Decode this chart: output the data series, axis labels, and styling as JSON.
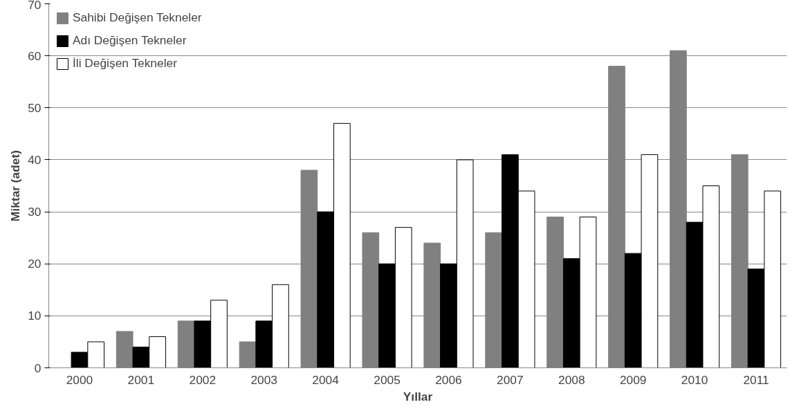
{
  "chart_data": {
    "type": "bar",
    "xlabel": "Yıllar",
    "ylabel": "Miktar (adet)",
    "categories": [
      "2000",
      "2001",
      "2002",
      "2003",
      "2004",
      "2005",
      "2006",
      "2007",
      "2008",
      "2009",
      "2010",
      "2011"
    ],
    "series": [
      {
        "name": "Sahibi Değişen Tekneler",
        "color": "#808080",
        "values": [
          null,
          7,
          9,
          5,
          38,
          26,
          24,
          26,
          29,
          58,
          61,
          41
        ]
      },
      {
        "name": "Adı Değişen Tekneler",
        "color": "#000000",
        "values": [
          3,
          4,
          9,
          9,
          30,
          20,
          20,
          41,
          21,
          22,
          28,
          19
        ]
      },
      {
        "name": "İli Değişen Tekneler",
        "color": "#ffffff",
        "values": [
          5,
          6,
          13,
          16,
          47,
          27,
          40,
          34,
          29,
          41,
          35,
          34
        ]
      }
    ],
    "ylim": [
      0,
      70
    ],
    "yticks": [
      0,
      10,
      20,
      30,
      40,
      50,
      60,
      70
    ],
    "grid": "y",
    "legend": "top left"
  }
}
